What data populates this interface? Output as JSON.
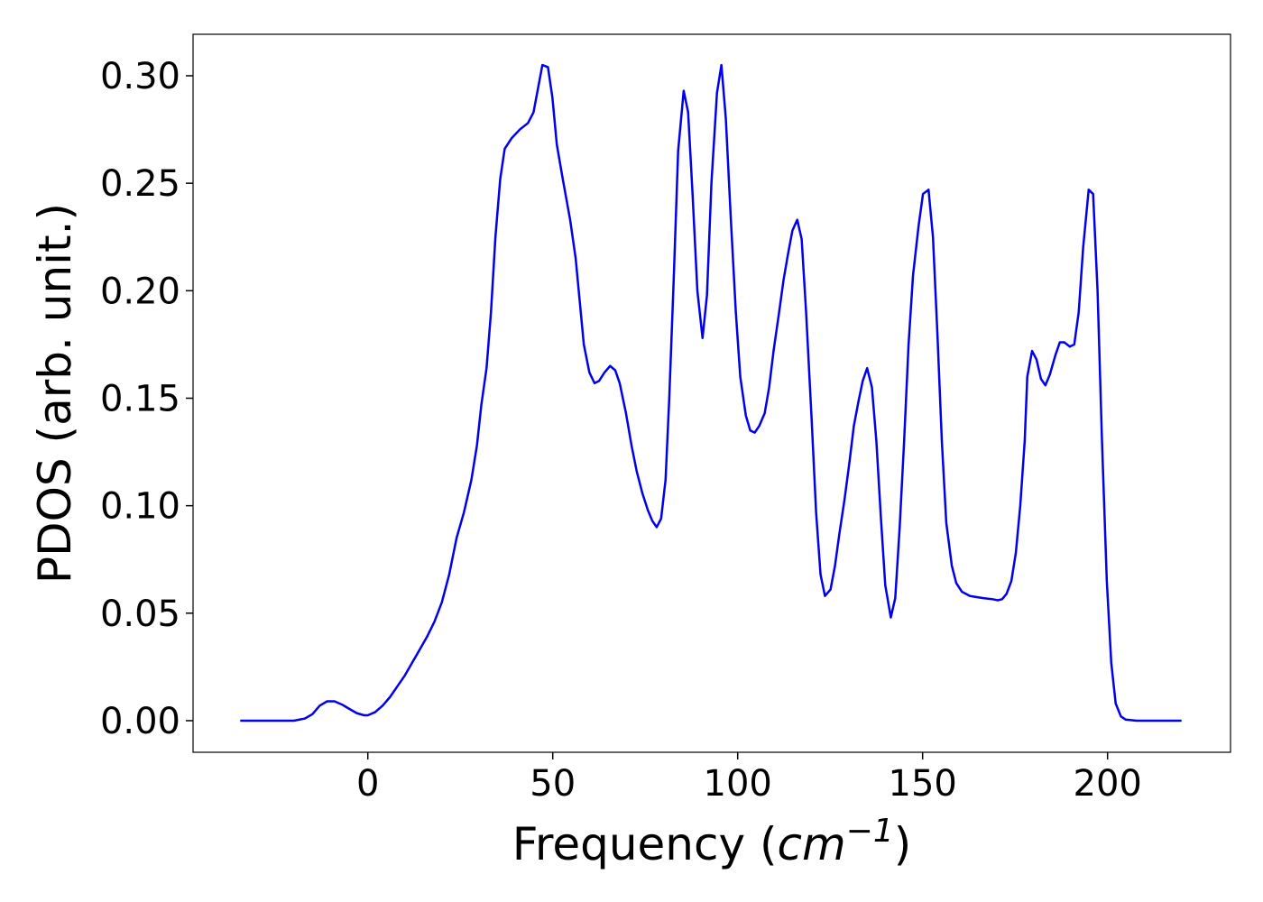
{
  "chart_data": {
    "type": "line",
    "xlabel": [
      "Frequency (",
      "cm",
      "−1",
      ")"
    ],
    "ylabel": "PDOS (arb. unit.)",
    "xlim": [
      -47.25,
      233.25
    ],
    "ylim": [
      -0.0147,
      0.3193
    ],
    "xticks": [
      0,
      50,
      100,
      150,
      200
    ],
    "yticks": [
      {
        "value": 0,
        "label": "0.00"
      },
      {
        "value": 0.05,
        "label": "0.05"
      },
      {
        "value": 0.1,
        "label": "0.10"
      },
      {
        "value": 0.15,
        "label": "0.15"
      },
      {
        "value": 0.2,
        "label": "0.20"
      },
      {
        "value": 0.25,
        "label": "0.25"
      },
      {
        "value": 0.3,
        "label": "0.30"
      }
    ],
    "grid": false,
    "series": [
      {
        "color": "#0000ee",
        "x": [
          -34.5,
          -20,
          -17,
          -15,
          -13,
          -11,
          -9,
          -7,
          -5,
          -3,
          -1,
          0,
          2,
          4,
          6,
          8,
          10,
          12,
          14,
          16,
          18,
          20,
          22,
          24,
          26,
          28,
          29.5,
          30.7,
          32.1,
          33.3,
          34.5,
          35.8,
          37,
          38.9,
          41.1,
          43.3,
          44.8,
          47.2,
          48.7,
          49.9,
          51.1,
          52.6,
          54.7,
          56.2,
          58.4,
          59.9,
          61.3,
          62.5,
          64,
          65.5,
          66.9,
          68.1,
          69.8,
          71.3,
          72.7,
          74.2,
          75.7,
          76.9,
          78.1,
          79.3,
          80.5,
          81.5,
          82.7,
          83.9,
          85.4,
          86.6,
          87.8,
          89.1,
          90.5,
          91.7,
          92.9,
          94.4,
          95.6,
          96.8,
          98.1,
          99.5,
          100.7,
          102.2,
          103.4,
          104.6,
          105.8,
          107.3,
          108.5,
          109.7,
          111.2,
          112.4,
          113.6,
          114.8,
          116.1,
          117.3,
          118.5,
          120,
          121.2,
          122.4,
          123.6,
          125.1,
          126.3,
          127.5,
          128.9,
          130.2,
          131.4,
          132.6,
          133.8,
          135,
          136.3,
          137.5,
          138.7,
          139.9,
          141.4,
          142.6,
          143.8,
          145,
          146.2,
          147.4,
          148.9,
          150.1,
          151.6,
          152.8,
          154,
          155.2,
          156.4,
          157.9,
          159.1,
          160.6,
          162.8,
          166.4,
          168.9,
          170.3,
          171.5,
          172.7,
          174,
          175.2,
          176.4,
          177.6,
          178.3,
          179.6,
          180.8,
          182,
          183.2,
          184.4,
          185.9,
          187.1,
          188.3,
          189.8,
          191,
          192.2,
          193.4,
          194.9,
          196.1,
          197.3,
          198.5,
          199.8,
          201,
          202.2,
          203.6,
          204.9,
          207.8,
          220
        ],
        "values": [
          0,
          0,
          0.001,
          0.003,
          0.007,
          0.009,
          0.009,
          0.0075,
          0.0055,
          0.0035,
          0.0025,
          0.0025,
          0.004,
          0.007,
          0.011,
          0.016,
          0.021,
          0.027,
          0.033,
          0.039,
          0.046,
          0.055,
          0.068,
          0.085,
          0.097,
          0.112,
          0.128,
          0.147,
          0.164,
          0.19,
          0.225,
          0.252,
          0.266,
          0.271,
          0.275,
          0.278,
          0.283,
          0.305,
          0.304,
          0.29,
          0.268,
          0.253,
          0.233,
          0.215,
          0.175,
          0.162,
          0.157,
          0.158,
          0.162,
          0.165,
          0.163,
          0.157,
          0.143,
          0.128,
          0.116,
          0.106,
          0.098,
          0.093,
          0.09,
          0.094,
          0.112,
          0.15,
          0.205,
          0.265,
          0.293,
          0.283,
          0.245,
          0.2,
          0.178,
          0.198,
          0.25,
          0.292,
          0.305,
          0.28,
          0.235,
          0.19,
          0.16,
          0.142,
          0.135,
          0.134,
          0.137,
          0.143,
          0.155,
          0.172,
          0.19,
          0.205,
          0.217,
          0.228,
          0.233,
          0.224,
          0.19,
          0.14,
          0.097,
          0.068,
          0.058,
          0.061,
          0.072,
          0.087,
          0.103,
          0.12,
          0.137,
          0.148,
          0.158,
          0.164,
          0.155,
          0.13,
          0.095,
          0.063,
          0.048,
          0.057,
          0.09,
          0.13,
          0.175,
          0.207,
          0.23,
          0.245,
          0.247,
          0.225,
          0.18,
          0.13,
          0.092,
          0.072,
          0.064,
          0.06,
          0.058,
          0.057,
          0.0565,
          0.056,
          0.0565,
          0.059,
          0.065,
          0.078,
          0.1,
          0.13,
          0.16,
          0.172,
          0.168,
          0.159,
          0.156,
          0.161,
          0.17,
          0.176,
          0.176,
          0.174,
          0.175,
          0.19,
          0.22,
          0.247,
          0.245,
          0.2,
          0.13,
          0.065,
          0.027,
          0.008,
          0.002,
          0.0005,
          0,
          0
        ]
      }
    ]
  }
}
